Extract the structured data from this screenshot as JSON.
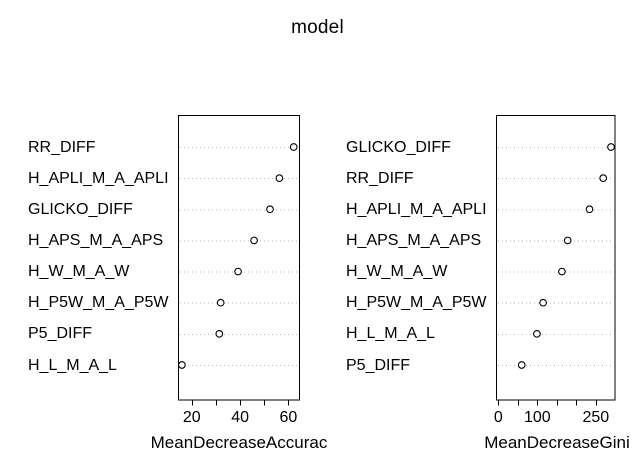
{
  "title": "model",
  "colors": {
    "foreground": "#000000",
    "background": "#ffffff",
    "gridline": "#b3b3b3",
    "marker_stroke": "#000000",
    "marker_fill": "#ffffff"
  },
  "chart_data": [
    {
      "type": "scatter",
      "variant": "dot-chart",
      "xlabel": "MeanDecreaseAccurac",
      "ylabel": "",
      "grid": "dotted-horizontal",
      "marker": "open-circle",
      "legend": "none",
      "categories": [
        "RR_DIFF",
        "H_APLI_M_A_APLI",
        "GLICKO_DIFF",
        "H_APS_M_A_APS",
        "H_W_M_A_W",
        "H_P5W_M_A_P5W",
        "P5_DIFF",
        "H_L_M_A_L"
      ],
      "values": [
        62.2,
        56.3,
        52.4,
        45.8,
        39.2,
        32.0,
        31.4,
        15.9
      ],
      "xlim": [
        14.3,
        64.4
      ],
      "x_ticks": [
        20,
        30,
        40,
        50,
        60
      ],
      "x_tick_labels": [
        {
          "value": 20,
          "label": "20"
        },
        {
          "value": 40,
          "label": "40"
        },
        {
          "value": 60,
          "label": "60"
        }
      ]
    },
    {
      "type": "scatter",
      "variant": "dot-chart",
      "xlabel": "MeanDecreaseGini",
      "ylabel": "",
      "grid": "dotted-horizontal",
      "marker": "open-circle",
      "legend": "none",
      "categories": [
        "GLICKO_DIFF",
        "RR_DIFF",
        "H_APLI_M_A_APLI",
        "H_APS_M_A_APS",
        "H_W_M_A_W",
        "H_P5W_M_A_P5W",
        "H_L_M_A_L",
        "P5_DIFF"
      ],
      "values": [
        289,
        269,
        234,
        178,
        163,
        115,
        99,
        60
      ],
      "xlim": [
        -5.9,
        298
      ],
      "x_ticks": [
        0,
        50,
        100,
        150,
        200,
        250
      ],
      "x_tick_labels": [
        {
          "value": 0,
          "label": "0"
        },
        {
          "value": 100,
          "label": "100"
        },
        {
          "value": 250,
          "label": "250"
        }
      ]
    }
  ]
}
